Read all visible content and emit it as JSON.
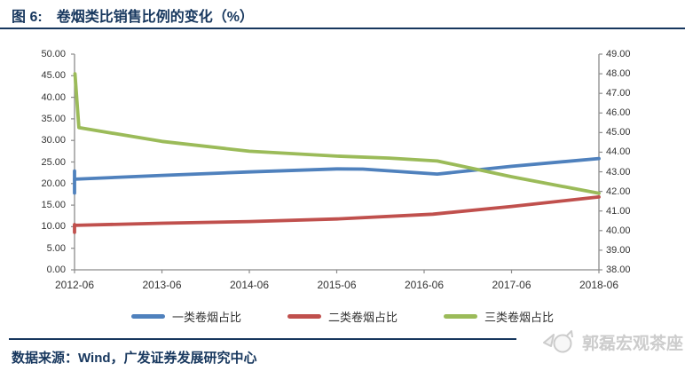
{
  "figure": {
    "label": "图 6:",
    "title": "卷烟类比销售比例的变化（%）"
  },
  "footer": {
    "source": "数据来源：Wind，广发证券发展研究中心",
    "logo_text": "郭磊宏观茶座"
  },
  "colors": {
    "accent_navy": "#17375E",
    "axis_gray": "#8C8C8C",
    "tick_text": "#333333",
    "watermark_gray": "#CCCCCC",
    "series_blue": "#4F81BD",
    "series_red": "#C0504D",
    "series_green": "#9BBB59"
  },
  "chart_data": {
    "type": "line",
    "title": "卷烟类比销售比例的变化（%）",
    "grid": false,
    "legend_position": "bottom",
    "x_labels": [
      "2012-06",
      "2013-06",
      "2014-06",
      "2015-06",
      "2016-06",
      "2017-06",
      "2018-06"
    ],
    "x_range": [
      0,
      6
    ],
    "left_axis": {
      "min": 0,
      "max": 50,
      "step": 5,
      "tick_labels": [
        "50.00",
        "45.00",
        "40.00",
        "35.00",
        "30.00",
        "25.00",
        "20.00",
        "15.00",
        "10.00",
        "5.00",
        "0.00"
      ]
    },
    "right_axis": {
      "min": 38,
      "max": 49,
      "step": 1,
      "tick_labels": [
        "49.00",
        "48.00",
        "47.00",
        "46.00",
        "45.00",
        "44.00",
        "43.00",
        "42.00",
        "41.00",
        "40.00",
        "39.00",
        "38.00"
      ]
    },
    "series": [
      {
        "name": "一类卷烟占比",
        "color": "#4F81BD",
        "axis": "left",
        "start_spike": [
          17.8,
          22.9
        ],
        "points": [
          [
            0,
            21.0
          ],
          [
            1,
            21.9
          ],
          [
            2,
            22.7
          ],
          [
            3,
            23.4
          ],
          [
            3.3,
            23.35
          ],
          [
            4.15,
            22.2
          ],
          [
            5,
            24.0
          ],
          [
            6,
            25.8
          ]
        ]
      },
      {
        "name": "二类卷烟占比",
        "color": "#C0504D",
        "axis": "left",
        "start_spike": [
          8.7,
          10.5
        ],
        "points": [
          [
            0,
            10.3
          ],
          [
            1,
            10.8
          ],
          [
            2,
            11.2
          ],
          [
            3,
            11.8
          ],
          [
            4.1,
            12.9
          ],
          [
            5,
            14.7
          ],
          [
            6,
            16.9
          ]
        ]
      },
      {
        "name": "三类卷烟占比",
        "color": "#9BBB59",
        "axis": "right",
        "start_spike": null,
        "points": [
          [
            0.005,
            48.0
          ],
          [
            0.05,
            45.25
          ],
          [
            1,
            44.55
          ],
          [
            2,
            44.05
          ],
          [
            3,
            43.8
          ],
          [
            3.6,
            43.7
          ],
          [
            4.15,
            43.55
          ],
          [
            5,
            42.75
          ],
          [
            6,
            41.9
          ]
        ]
      }
    ]
  }
}
